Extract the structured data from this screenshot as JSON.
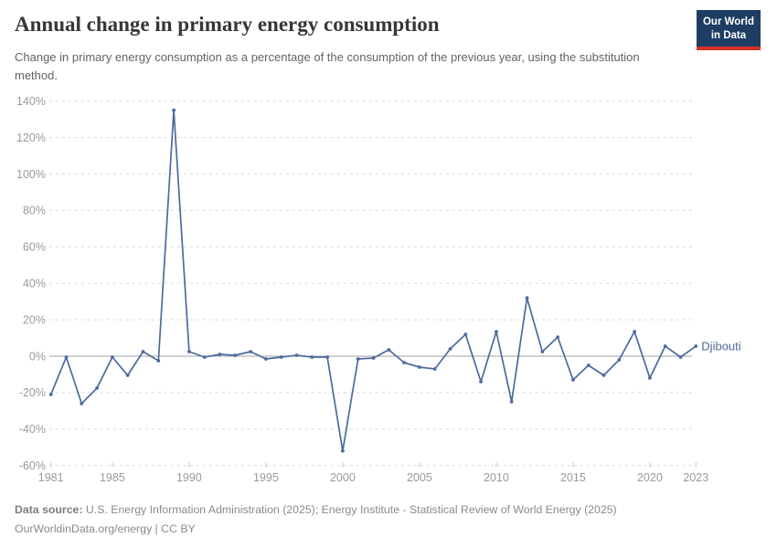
{
  "header": {
    "title": "Annual change in primary energy consumption",
    "subtitle": "Change in primary energy consumption as a percentage of the consumption of the previous year, using the substitution method.",
    "logo_line1": "Our World",
    "logo_line2": "in Data"
  },
  "chart_data": {
    "type": "line",
    "title": "Annual change in primary energy consumption",
    "xlabel": "",
    "ylabel": "",
    "ylim": [
      -60,
      140
    ],
    "ytick_step": 20,
    "ytick_suffix": "%",
    "xticks": [
      1981,
      1985,
      1990,
      1995,
      2000,
      2005,
      2010,
      2015,
      2020,
      2023
    ],
    "grid": "horizontal-dashed",
    "legend_position": "line-end-label",
    "series": [
      {
        "name": "Djibouti",
        "color": "#4c6a9c",
        "x": [
          1981,
          1982,
          1983,
          1984,
          1985,
          1986,
          1987,
          1988,
          1989,
          1990,
          1991,
          1992,
          1993,
          1994,
          1995,
          1996,
          1997,
          1998,
          1999,
          2000,
          2001,
          2002,
          2003,
          2004,
          2005,
          2006,
          2007,
          2008,
          2009,
          2010,
          2011,
          2012,
          2013,
          2014,
          2015,
          2016,
          2017,
          2018,
          2019,
          2020,
          2021,
          2022,
          2023
        ],
        "values": [
          -21,
          -0.5,
          -26,
          -17.5,
          -0.5,
          -10.5,
          2.5,
          -2.5,
          135,
          2.5,
          -0.5,
          1,
          0.5,
          2.5,
          -1.5,
          -0.5,
          0.5,
          -0.5,
          -0.5,
          -52,
          -1.5,
          -1,
          3.5,
          -3.5,
          -6,
          -7,
          4,
          12,
          -14,
          13.5,
          -25,
          32,
          2.5,
          10.5,
          -13,
          -5,
          -10.5,
          -2,
          13.5,
          -12,
          5.5,
          -0.5,
          5.5
        ]
      }
    ]
  },
  "footer": {
    "source_bold": "Data source:",
    "source_rest": " U.S. Energy Information Administration (2025); Energy Institute - Statistical Review of World Energy (2025)",
    "citation": "OurWorldinData.org/energy | CC BY"
  },
  "colors": {
    "line": "#4c6a9c",
    "grid": "#dadada",
    "zero_line": "#a3a3a3",
    "tick_mark": "#c2c2c2",
    "tick_text": "#9a9a9a",
    "entity_label": "#4c6a9c"
  }
}
